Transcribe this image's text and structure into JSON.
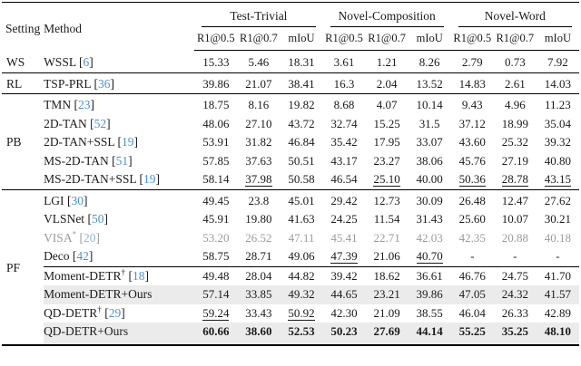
{
  "colors": {
    "citation_blue": "#4a90d9",
    "grayed_row": "#9b9b9b",
    "shaded_row_bg": "#ebebeb"
  },
  "header": {
    "setting": "Setting",
    "method": "Method",
    "groups": [
      {
        "label": "Test-Trivial"
      },
      {
        "label": "Novel-Composition"
      },
      {
        "label": "Novel-Word"
      }
    ],
    "metrics": [
      "R1@0.5",
      "R1@0.7",
      "mIoU"
    ]
  },
  "rows": [
    {
      "setting": "WS",
      "span": 1,
      "group_start": false,
      "method": "WSSL",
      "sup": "",
      "cite": "6",
      "values": [
        "15.33",
        "5.46",
        "18.31",
        "3.61",
        "1.21",
        "8.26",
        "2.79",
        "0.73",
        "7.92"
      ],
      "underline": [],
      "bold": false,
      "gray": false,
      "shaded": false,
      "rule_partial": false
    },
    {
      "setting": "RL",
      "span": 1,
      "group_start": true,
      "method": "TSP-PRL",
      "sup": "",
      "cite": "36",
      "values": [
        "39.86",
        "21.07",
        "38.41",
        "16.3",
        "2.04",
        "13.52",
        "14.83",
        "2.61",
        "14.03"
      ],
      "underline": [],
      "bold": false,
      "gray": false,
      "shaded": false,
      "rule_partial": false
    },
    {
      "setting": "PB",
      "span": 5,
      "group_start": true,
      "method": "TMN",
      "sup": "",
      "cite": "23",
      "values": [
        "18.75",
        "8.16",
        "19.82",
        "8.68",
        "4.07",
        "10.14",
        "9.43",
        "4.96",
        "11.23"
      ],
      "underline": [],
      "bold": false,
      "gray": false,
      "shaded": false,
      "rule_partial": false
    },
    {
      "setting": "",
      "span": 0,
      "group_start": false,
      "method": "2D-TAN",
      "sup": "",
      "cite": "52",
      "values": [
        "48.06",
        "27.10",
        "43.72",
        "32.74",
        "15.25",
        "31.5",
        "37.12",
        "18.99",
        "35.04"
      ],
      "underline": [],
      "bold": false,
      "gray": false,
      "shaded": false,
      "rule_partial": false
    },
    {
      "setting": "",
      "span": 0,
      "group_start": false,
      "method": "2D-TAN+SSL",
      "sup": "",
      "cite": "19",
      "values": [
        "53.91",
        "31.82",
        "46.84",
        "35.42",
        "17.95",
        "33.07",
        "43.60",
        "25.32",
        "39.32"
      ],
      "underline": [],
      "bold": false,
      "gray": false,
      "shaded": false,
      "rule_partial": false
    },
    {
      "setting": "",
      "span": 0,
      "group_start": false,
      "method": "MS-2D-TAN",
      "sup": "",
      "cite": "51",
      "values": [
        "57.85",
        "37.63",
        "50.51",
        "43.17",
        "23.27",
        "38.06",
        "45.76",
        "27.19",
        "40.80"
      ],
      "underline": [],
      "bold": false,
      "gray": false,
      "shaded": false,
      "rule_partial": false
    },
    {
      "setting": "",
      "span": 0,
      "group_start": false,
      "method": "MS-2D-TAN+SSL",
      "sup": "",
      "cite": "19",
      "values": [
        "58.14",
        "37.98",
        "50.58",
        "46.54",
        "25.10",
        "40.00",
        "50.36",
        "28.78",
        "43.15"
      ],
      "underline": [
        1,
        4,
        6,
        7,
        8
      ],
      "bold": false,
      "gray": false,
      "shaded": false,
      "rule_partial": false
    },
    {
      "setting": "PF",
      "span": 8,
      "group_start": true,
      "method": "LGI",
      "sup": "",
      "cite": "30",
      "values": [
        "49.45",
        "23.8",
        "45.01",
        "29.42",
        "12.73",
        "30.09",
        "26.48",
        "12.47",
        "27.62"
      ],
      "underline": [],
      "bold": false,
      "gray": false,
      "shaded": false,
      "rule_partial": false
    },
    {
      "setting": "",
      "span": 0,
      "group_start": false,
      "method": "VLSNet",
      "sup": "",
      "cite": "50",
      "values": [
        "45.91",
        "19.80",
        "41.63",
        "24.25",
        "11.54",
        "31.43",
        "25.60",
        "10.07",
        "30.21"
      ],
      "underline": [],
      "bold": false,
      "gray": false,
      "shaded": false,
      "rule_partial": false
    },
    {
      "setting": "",
      "span": 0,
      "group_start": false,
      "method": "VISA",
      "sup": "*",
      "cite": "20",
      "values": [
        "53.20",
        "26.52",
        "47.11",
        "45.41",
        "22.71",
        "42.03",
        "42.35",
        "20.88",
        "40.18"
      ],
      "underline": [],
      "bold": false,
      "gray": true,
      "shaded": false,
      "rule_partial": false
    },
    {
      "setting": "",
      "span": 0,
      "group_start": false,
      "method": "Deco",
      "sup": "",
      "cite": "42",
      "values": [
        "58.75",
        "28.71",
        "49.06",
        "47.39",
        "21.06",
        "40.70",
        "-",
        "-",
        "-"
      ],
      "underline": [
        3,
        5
      ],
      "bold": false,
      "gray": false,
      "shaded": false,
      "rule_partial": false
    },
    {
      "setting": "",
      "span": 0,
      "group_start": false,
      "method": "Moment-DETR",
      "sup": "†",
      "cite": "18",
      "values": [
        "49.48",
        "28.04",
        "44.82",
        "39.42",
        "18.62",
        "36.61",
        "46.76",
        "24.75",
        "41.70"
      ],
      "underline": [],
      "bold": false,
      "gray": false,
      "shaded": false,
      "rule_partial": true
    },
    {
      "setting": "",
      "span": 0,
      "group_start": false,
      "method": "Moment-DETR+Ours",
      "sup": "",
      "cite": "",
      "values": [
        "57.14",
        "33.85",
        "49.32",
        "44.65",
        "23.21",
        "39.86",
        "47.05",
        "24.32",
        "41.57"
      ],
      "underline": [],
      "bold": false,
      "gray": false,
      "shaded": true,
      "rule_partial": false
    },
    {
      "setting": "",
      "span": 0,
      "group_start": false,
      "method": "QD-DETR",
      "sup": "†",
      "cite": "29",
      "values": [
        "59.24",
        "33.43",
        "50.92",
        "42.30",
        "21.09",
        "38.55",
        "46.04",
        "26.33",
        "42.89"
      ],
      "underline": [
        0,
        2
      ],
      "bold": false,
      "gray": false,
      "shaded": false,
      "rule_partial": false
    },
    {
      "setting": "",
      "span": 0,
      "group_start": false,
      "method": "QD-DETR+Ours",
      "sup": "",
      "cite": "",
      "values": [
        "60.66",
        "38.60",
        "52.53",
        "50.23",
        "27.69",
        "44.14",
        "55.25",
        "35.25",
        "48.10"
      ],
      "underline": [],
      "bold": true,
      "gray": false,
      "shaded": true,
      "rule_partial": false
    }
  ]
}
